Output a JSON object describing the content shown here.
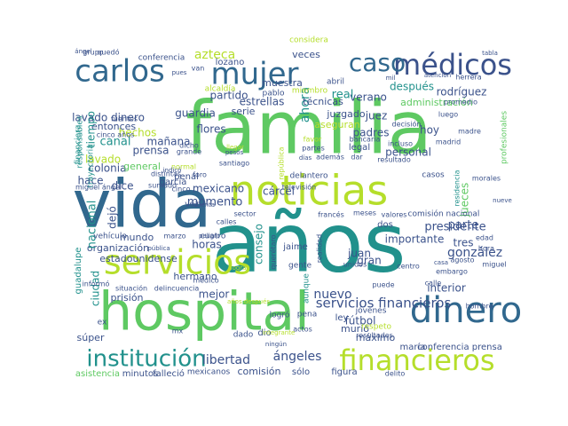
{
  "words": [
    {
      "text": "familia",
      "color": "#5ec962"
    },
    {
      "text": "años",
      "color": "#21918c"
    },
    {
      "text": "hospital",
      "color": "#5ec962"
    },
    {
      "text": "vida",
      "color": "#31688e"
    },
    {
      "text": "noticias",
      "color": "#b5de2b"
    },
    {
      "text": "servicios",
      "color": "#b5de2b"
    },
    {
      "text": "médicos",
      "color": "#3b528b"
    },
    {
      "text": "carlos",
      "color": "#31688e"
    },
    {
      "text": "mujer",
      "color": "#31688e"
    },
    {
      "text": "caso",
      "color": "#31688e"
    },
    {
      "text": "dinero",
      "color": "#31688e"
    },
    {
      "text": "financieros",
      "color": "#b5de2b"
    },
    {
      "text": "institución",
      "color": "#21918c"
    },
    {
      "text": "servicios financieros",
      "color": "#3b528b"
    },
    {
      "text": "libertad",
      "color": "#3b528b"
    },
    {
      "text": "ángeles",
      "color": "#3b528b"
    },
    {
      "text": "nuevo",
      "color": "#3b528b"
    },
    {
      "text": "presidente",
      "color": "#3b528b"
    },
    {
      "text": "gonzález",
      "color": "#3b528b"
    },
    {
      "text": "lavado dinero",
      "color": "#3b528b"
    },
    {
      "text": "azteca",
      "color": "#b5de2b"
    },
    {
      "text": "estrellas",
      "color": "#3b528b"
    },
    {
      "text": "partido",
      "color": "#3b528b"
    },
    {
      "text": "veces",
      "color": "#3b528b"
    },
    {
      "text": "verano",
      "color": "#3b528b"
    },
    {
      "text": "después",
      "color": "#21918c"
    },
    {
      "text": "rodríguez",
      "color": "#3b528b"
    },
    {
      "text": "administración",
      "color": "#5ec962"
    },
    {
      "text": "real",
      "color": "#21918c"
    },
    {
      "text": "ahora",
      "color": "#21918c"
    },
    {
      "text": "hechos",
      "color": "#b5de2b"
    },
    {
      "text": "lavado",
      "color": "#b5de2b"
    },
    {
      "text": "prensa",
      "color": "#3b528b"
    },
    {
      "text": "canal",
      "color": "#21918c"
    },
    {
      "text": "colonia",
      "color": "#3b528b"
    },
    {
      "text": "general",
      "color": "#5ec962"
    },
    {
      "text": "hace",
      "color": "#3b528b"
    },
    {
      "text": "dice",
      "color": "#3b528b"
    },
    {
      "text": "momento",
      "color": "#3b528b"
    },
    {
      "text": "mexicano",
      "color": "#3b528b"
    },
    {
      "text": "cárcel",
      "color": "#3b528b"
    },
    {
      "text": "jueces",
      "color": "#5ec962"
    },
    {
      "text": "juez",
      "color": "#3b528b"
    },
    {
      "text": "padres",
      "color": "#3b528b"
    },
    {
      "text": "personal",
      "color": "#3b528b"
    },
    {
      "text": "hoy",
      "color": "#3b528b"
    },
    {
      "text": "parte",
      "color": "#3b528b"
    },
    {
      "text": "tres",
      "color": "#3b528b"
    },
    {
      "text": "juan",
      "color": "#3b528b"
    },
    {
      "text": "gran",
      "color": "#3b528b"
    },
    {
      "text": "importante",
      "color": "#3b528b"
    },
    {
      "text": "horas",
      "color": "#3b528b"
    },
    {
      "text": "mundo",
      "color": "#3b528b"
    },
    {
      "text": "organización",
      "color": "#3b528b"
    },
    {
      "text": "estadounidense",
      "color": "#3b528b"
    },
    {
      "text": "hermano",
      "color": "#3b528b"
    },
    {
      "text": "mejor",
      "color": "#3b528b"
    },
    {
      "text": "fútbol",
      "color": "#3b528b"
    },
    {
      "text": "máximo",
      "color": "#3b528b"
    },
    {
      "text": "murió",
      "color": "#3b528b"
    },
    {
      "text": "interior",
      "color": "#3b528b"
    },
    {
      "text": "comisión",
      "color": "#3b528b"
    },
    {
      "text": "figura",
      "color": "#3b528b"
    },
    {
      "text": "sólo",
      "color": "#3b528b"
    },
    {
      "text": "ciudad",
      "color": "#21918c"
    },
    {
      "text": "súper",
      "color": "#3b528b"
    },
    {
      "text": "prisión",
      "color": "#3b528b"
    },
    {
      "text": "asistencia",
      "color": "#5ec962"
    },
    {
      "text": "minutos",
      "color": "#3b528b"
    },
    {
      "text": "falleció",
      "color": "#3b528b"
    },
    {
      "text": "mexicanos",
      "color": "#3b528b"
    },
    {
      "text": "delito",
      "color": "#3b528b"
    },
    {
      "text": "maría",
      "color": "#3b528b"
    },
    {
      "text": "conferencia prensa",
      "color": "#3b528b"
    },
    {
      "text": "guardia",
      "color": "#3b528b"
    },
    {
      "text": "flores",
      "color": "#3b528b"
    },
    {
      "text": "mañana",
      "color": "#3b528b"
    },
    {
      "text": "entonces",
      "color": "#3b528b"
    },
    {
      "text": "tiempo",
      "color": "#21918c"
    },
    {
      "text": "técnicas",
      "color": "#3b528b"
    },
    {
      "text": "juzgado",
      "color": "#3b528b"
    },
    {
      "text": "aseguran",
      "color": "#b5de2b"
    },
    {
      "text": "muestra",
      "color": "#3b528b"
    },
    {
      "text": "lozano",
      "color": "#3b528b"
    },
    {
      "text": "conferencia",
      "color": "#3b528b"
    },
    {
      "text": "considera",
      "color": "#b5de2b"
    },
    {
      "text": "serie",
      "color": "#3b528b"
    },
    {
      "text": "abril",
      "color": "#3b528b"
    },
    {
      "text": "pablo",
      "color": "#3b528b"
    },
    {
      "text": "alcaldía",
      "color": "#b5de2b"
    },
    {
      "text": "miembro",
      "color": "#b5de2b"
    },
    {
      "text": "grupo",
      "color": "#3b528b"
    },
    {
      "text": "quedó",
      "color": "#3b528b"
    },
    {
      "text": "van",
      "color": "#3b528b"
    },
    {
      "text": "financiera",
      "color": "#21918c"
    },
    {
      "text": "trayectoria",
      "color": "#21918c"
    },
    {
      "text": "fuentes",
      "color": "#3b528b"
    },
    {
      "text": "cinco años",
      "color": "#3b528b"
    },
    {
      "text": "distintas",
      "color": "#3b528b"
    },
    {
      "text": "dicho",
      "color": "#3b528b"
    },
    {
      "text": "grande",
      "color": "#3b528b"
    },
    {
      "text": "normal",
      "color": "#b5de2b"
    },
    {
      "text": "foro",
      "color": "#3b528b"
    },
    {
      "text": "santiago",
      "color": "#3b528b"
    },
    {
      "text": "república",
      "color": "#b5de2b"
    },
    {
      "text": "herrera",
      "color": "#3b528b"
    },
    {
      "text": "promedio",
      "color": "#3b528b"
    },
    {
      "text": "luego",
      "color": "#3b528b"
    },
    {
      "text": "madre",
      "color": "#3b528b"
    },
    {
      "text": "madrid",
      "color": "#3b528b"
    },
    {
      "text": "incluso",
      "color": "#3b528b"
    },
    {
      "text": "resultado",
      "color": "#3b528b"
    },
    {
      "text": "bancaria",
      "color": "#3b528b"
    },
    {
      "text": "legal",
      "color": "#3b528b"
    },
    {
      "text": "favor",
      "color": "#b5de2b"
    },
    {
      "text": "partes",
      "color": "#3b528b"
    },
    {
      "text": "además",
      "color": "#3b528b"
    },
    {
      "text": "dar",
      "color": "#3b528b"
    },
    {
      "text": "decisión",
      "color": "#3b528b"
    },
    {
      "text": "casos",
      "color": "#3b528b"
    },
    {
      "text": "morales",
      "color": "#3b528b"
    },
    {
      "text": "residencia",
      "color": "#21918c"
    },
    {
      "text": "delantero",
      "color": "#3b528b"
    },
    {
      "text": "televisión",
      "color": "#3b528b"
    },
    {
      "text": "garcía",
      "color": "#3b528b"
    },
    {
      "text": "penal",
      "color": "#3b528b"
    },
    {
      "text": "sumado",
      "color": "#3b528b"
    },
    {
      "text": "cinco",
      "color": "#3b528b"
    },
    {
      "text": "miguel ángel",
      "color": "#3b528b"
    },
    {
      "text": "vez",
      "color": "#3b528b"
    },
    {
      "text": "nacional",
      "color": "#21918c"
    },
    {
      "text": "dejó",
      "color": "#3b528b"
    },
    {
      "text": "vehículo",
      "color": "#3b528b"
    },
    {
      "text": "marzo",
      "color": "#3b528b"
    },
    {
      "text": "cuatro",
      "color": "#3b528b"
    },
    {
      "text": "sector",
      "color": "#3b528b"
    },
    {
      "text": "consejo",
      "color": "#21918c"
    },
    {
      "text": "querétaro",
      "color": "#3b528b"
    },
    {
      "text": "francés",
      "color": "#3b528b"
    },
    {
      "text": "meses",
      "color": "#3b528b"
    },
    {
      "text": "valores",
      "color": "#3b528b"
    },
    {
      "text": "comisión nacional",
      "color": "#3b528b"
    },
    {
      "text": "dos",
      "color": "#3b528b"
    },
    {
      "text": "edad",
      "color": "#3b528b"
    },
    {
      "text": "hora",
      "color": "#3b528b"
    },
    {
      "text": "agosto",
      "color": "#3b528b"
    },
    {
      "text": "miguel",
      "color": "#3b528b"
    },
    {
      "text": "embargo",
      "color": "#3b528b"
    },
    {
      "text": "calle",
      "color": "#3b528b"
    },
    {
      "text": "hombre",
      "color": "#3b528b"
    },
    {
      "text": "jóvenes",
      "color": "#3b528b"
    },
    {
      "text": "respeto",
      "color": "#b5de2b"
    },
    {
      "text": "resultados",
      "color": "#3b528b"
    },
    {
      "text": "puede",
      "color": "#3b528b"
    },
    {
      "text": "centro",
      "color": "#3b528b"
    },
    {
      "text": "unidos",
      "color": "#3b528b"
    },
    {
      "text": "jaime",
      "color": "#3b528b"
    },
    {
      "text": "gente",
      "color": "#3b528b"
    },
    {
      "text": "realidad",
      "color": "#3b528b"
    },
    {
      "text": "aunque",
      "color": "#21918c"
    },
    {
      "text": "pena",
      "color": "#3b528b"
    },
    {
      "text": "ley",
      "color": "#3b528b"
    },
    {
      "text": "actos",
      "color": "#3b528b"
    },
    {
      "text": "dio",
      "color": "#3b528b"
    },
    {
      "text": "dado",
      "color": "#3b528b"
    },
    {
      "text": "logró",
      "color": "#3b528b"
    },
    {
      "text": "médico",
      "color": "#3b528b"
    },
    {
      "text": "situación",
      "color": "#3b528b"
    },
    {
      "text": "delincuencia",
      "color": "#3b528b"
    },
    {
      "text": "calles",
      "color": "#3b528b"
    },
    {
      "text": "guadalupe",
      "color": "#21918c"
    },
    {
      "text": "informó",
      "color": "#3b528b"
    },
    {
      "text": "pública",
      "color": "#3b528b"
    },
    {
      "text": "peligro",
      "color": "#3b528b"
    },
    {
      "text": "cuenta",
      "color": "#3b528b"
    },
    {
      "text": "profesionales",
      "color": "#5ec962"
    },
    {
      "text": "responsables",
      "color": "#21918c"
    },
    {
      "text": "atención",
      "color": "#3b528b"
    },
    {
      "text": "tabla",
      "color": "#3b528b"
    },
    {
      "text": "pues",
      "color": "#3b528b"
    },
    {
      "text": "días",
      "color": "#3b528b"
    },
    {
      "text": "ex",
      "color": "#3b528b"
    },
    {
      "text": "mx",
      "color": "#3b528b"
    },
    {
      "text": "años después",
      "color": "#b5de2b"
    },
    {
      "text": "nueve",
      "color": "#3b528b"
    },
    {
      "text": "integrante",
      "color": "#b5de2b"
    },
    {
      "text": "casa",
      "color": "#3b528b"
    },
    {
      "text": "pesos",
      "color": "#3b528b"
    },
    {
      "text": "llegar",
      "color": "#b5de2b"
    },
    {
      "text": "indicó",
      "color": "#3b528b"
    },
    {
      "text": "ángel",
      "color": "#3b528b"
    },
    {
      "text": "ningún",
      "color": "#3b528b"
    },
    {
      "text": "lograr",
      "color": "#b5de2b"
    },
    {
      "text": "mil",
      "color": "#3b528b"
    }
  ]
}
